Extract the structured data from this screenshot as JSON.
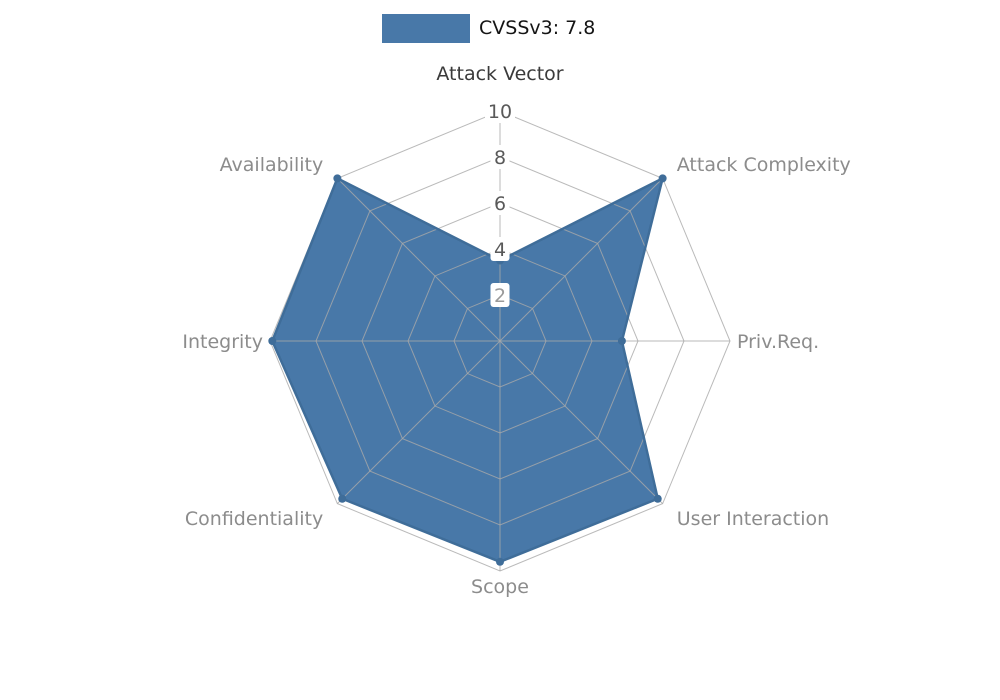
{
  "chart_data": {
    "type": "radar",
    "legend_label": "CVSSv3: 7.8",
    "categories": [
      "Attack Vector",
      "Attack Complexity",
      "Priv.Req.",
      "User Interaction",
      "Scope",
      "Confidentiality",
      "Integrity",
      "Availability"
    ],
    "series": [
      {
        "name": "CVSSv3: 7.8",
        "values": [
          3.5,
          10,
          5.3,
          9.7,
          9.6,
          9.7,
          9.9,
          10
        ]
      }
    ],
    "ticks": [
      2,
      4,
      6,
      8,
      10
    ],
    "rlim": [
      0,
      10
    ],
    "grid": true,
    "legend_position": "top-center",
    "colors": {
      "series_fill": "#4878a8",
      "series_edge": "#3f6d99",
      "grid": "#a9a9a9",
      "axis_label": "#8c8c8c",
      "top_axis_label": "#3a3a3a",
      "tick_label": "#595959",
      "tick_label_min": "#9a9a9a",
      "legend_text": "#141414",
      "background": "#ffffff",
      "tick_box": "#ffffff"
    }
  }
}
